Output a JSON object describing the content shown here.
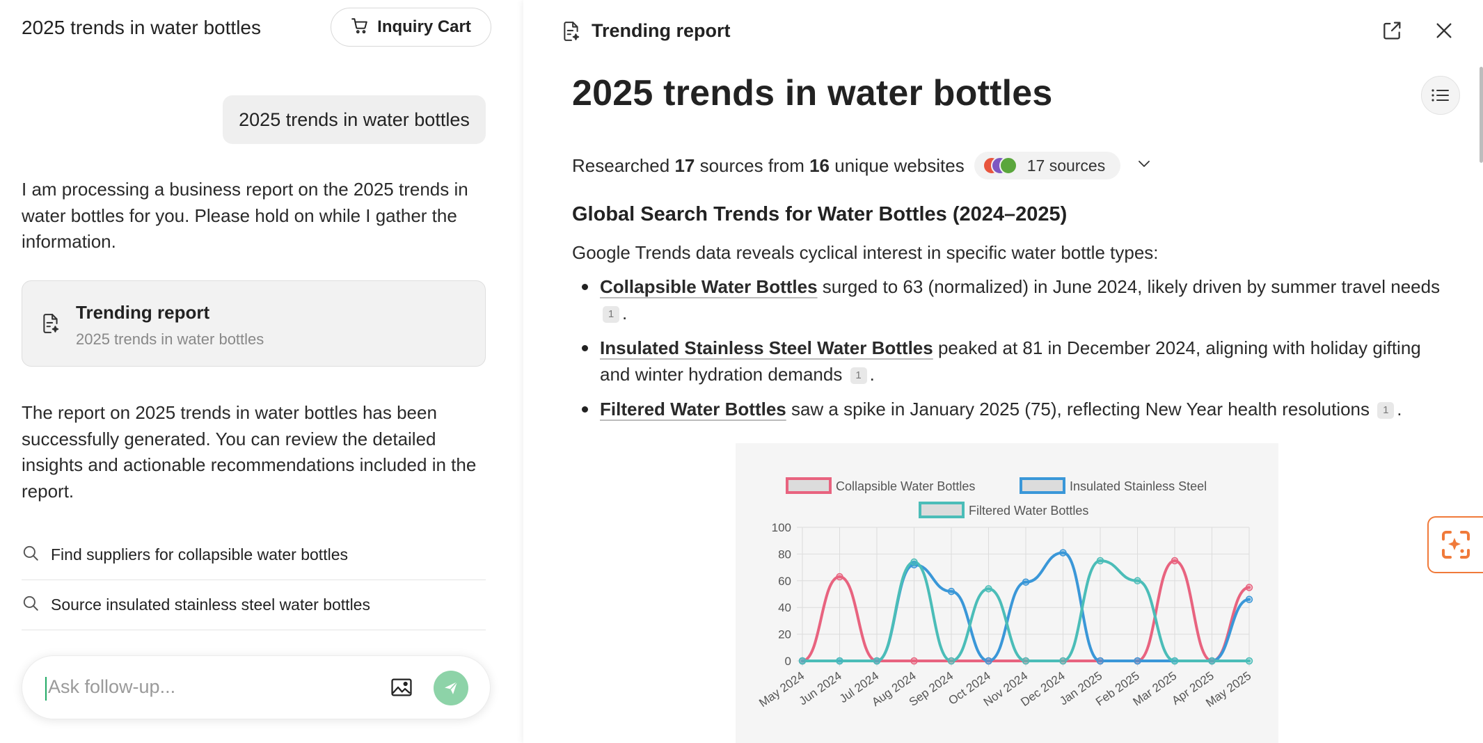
{
  "left": {
    "title": "2025 trends in water bottles",
    "cart_label": "Inquiry Cart",
    "user_message": "2025 trends in water bottles",
    "assistant_message_1": "I am processing a business report on the 2025 trends in water bottles for you. Please hold on while I gather the information.",
    "report_card": {
      "title": "Trending report",
      "subtitle": "2025 trends in water bottles"
    },
    "assistant_message_2": "The report on 2025 trends in water bottles has been successfully generated. You can review the detailed insights and actionable recommendations included in the report.",
    "suggestions": [
      "Find suppliers for collapsible water bottles",
      "Source insulated stainless steel water bottles"
    ],
    "input_placeholder": "Ask follow-up..."
  },
  "right": {
    "header_title": "Trending report",
    "report_title": "2025 trends in water bottles",
    "research": {
      "prefix": "Researched",
      "sources": "17",
      "mid": "sources from",
      "websites": "16",
      "suffix": "unique websites",
      "pill_label": "17 sources"
    },
    "section_title": "Global Search Trends for Water Bottles (2024–2025)",
    "intro": "Google Trends data reveals cyclical interest in specific water bottle types:",
    "bullets": [
      {
        "keyword": "Collapsible Water Bottles",
        "text": " surged to 63 (normalized) in June 2024, likely driven by summer travel needs",
        "cite": "1",
        "end": "."
      },
      {
        "keyword": "Insulated Stainless Steel Water Bottles",
        "text": " peaked at 81 in December 2024, aligning with holiday gifting and winter hydration demands",
        "cite": "1",
        "end": "."
      },
      {
        "keyword": "Filtered Water Bottles",
        "text": " saw a spike in January 2025 (75), reflecting New Year health resolutions",
        "cite": "1",
        "end": "."
      }
    ]
  },
  "colors": {
    "accent_green": "#8dd3a8",
    "pink": "#e8637f",
    "blue": "#3a97d8",
    "teal": "#4bbdb8",
    "orange": "#f07a3a"
  },
  "chart_data": {
    "type": "line",
    "categories": [
      "May 2024",
      "Jun 2024",
      "Jul 2024",
      "Aug 2024",
      "Sep 2024",
      "Oct 2024",
      "Nov 2024",
      "Dec 2024",
      "Jan 2025",
      "Feb 2025",
      "Mar 2025",
      "Apr 2025",
      "May 2025"
    ],
    "series": [
      {
        "name": "Collapsible Water Bottles",
        "color": "#e8637f",
        "values": [
          0,
          63,
          0,
          0,
          0,
          0,
          0,
          0,
          0,
          0,
          75,
          0,
          55
        ]
      },
      {
        "name": "Insulated Stainless Steel",
        "color": "#3a97d8",
        "values": [
          0,
          0,
          0,
          72,
          52,
          0,
          59,
          81,
          0,
          0,
          0,
          0,
          46
        ]
      },
      {
        "name": "Filtered Water Bottles",
        "color": "#4bbdb8",
        "values": [
          0,
          0,
          0,
          74,
          0,
          54,
          0,
          0,
          75,
          60,
          0,
          0,
          0
        ]
      }
    ],
    "ylim": [
      0,
      100
    ],
    "yticks": [
      0,
      20,
      40,
      60,
      80,
      100
    ],
    "grid": true,
    "legend": "top"
  }
}
